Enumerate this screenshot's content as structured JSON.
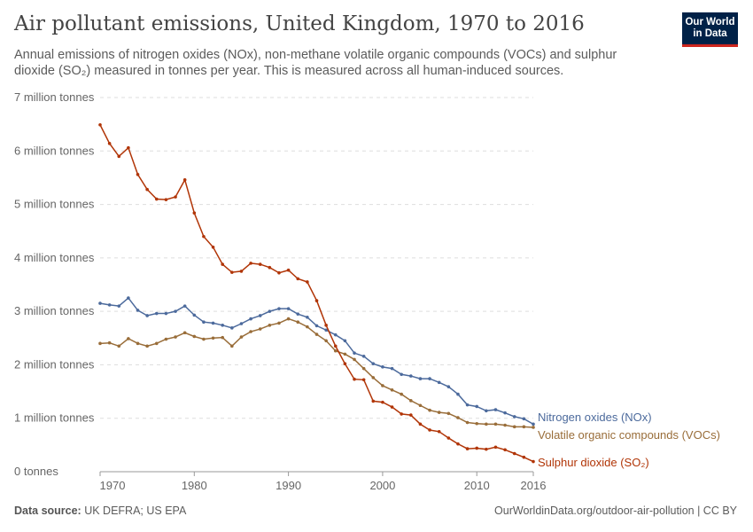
{
  "header": {
    "title": "Air pollutant emissions, United Kingdom, 1970 to 2016",
    "subtitle": "Annual emissions of nitrogen oxides (NOx), non-methane volatile organic compounds (VOCs) and sulphur dioxide (SO₂) measured in tonnes per year. This is measured across all human-induced sources.",
    "logo": "Our World in Data"
  },
  "footer": {
    "source_label": "Data source:",
    "source": "UK DEFRA; US EPA",
    "url": "OurWorldinData.org/outdoor-air-pollution | CC BY"
  },
  "chart_data": {
    "type": "line",
    "x": [
      1970,
      1971,
      1972,
      1973,
      1974,
      1975,
      1976,
      1977,
      1978,
      1979,
      1980,
      1981,
      1982,
      1983,
      1984,
      1985,
      1986,
      1987,
      1988,
      1989,
      1990,
      1991,
      1992,
      1993,
      1994,
      1995,
      1996,
      1997,
      1998,
      1999,
      2000,
      2001,
      2002,
      2003,
      2004,
      2005,
      2006,
      2007,
      2008,
      2009,
      2010,
      2011,
      2012,
      2013,
      2014,
      2015,
      2016
    ],
    "xticks": [
      1970,
      1980,
      1990,
      2000,
      2010,
      2016
    ],
    "ylim": [
      0,
      7000000
    ],
    "yticks": [
      {
        "v": 0,
        "label": "0 tonnes"
      },
      {
        "v": 1000000,
        "label": "1 million tonnes"
      },
      {
        "v": 2000000,
        "label": "2 million tonnes"
      },
      {
        "v": 3000000,
        "label": "3 million tonnes"
      },
      {
        "v": 4000000,
        "label": "4 million tonnes"
      },
      {
        "v": 5000000,
        "label": "5 million tonnes"
      },
      {
        "v": 6000000,
        "label": "6 million tonnes"
      },
      {
        "v": 7000000,
        "label": "7 million tonnes"
      }
    ],
    "grid": true,
    "legend": "right-end labels",
    "series": [
      {
        "name": "Nitrogen oxides (NOx)",
        "color": "#4c6a9c",
        "values": [
          3150000,
          3120000,
          3100000,
          3250000,
          3020000,
          2920000,
          2960000,
          2960000,
          3000000,
          3100000,
          2930000,
          2800000,
          2780000,
          2740000,
          2690000,
          2770000,
          2860000,
          2920000,
          3000000,
          3050000,
          3050000,
          2950000,
          2890000,
          2730000,
          2650000,
          2560000,
          2450000,
          2220000,
          2160000,
          2020000,
          1960000,
          1930000,
          1820000,
          1790000,
          1740000,
          1740000,
          1670000,
          1590000,
          1450000,
          1250000,
          1220000,
          1140000,
          1160000,
          1100000,
          1030000,
          990000,
          890000
        ]
      },
      {
        "name": "Volatile organic compounds (VOCs)",
        "color": "#996d39",
        "values": [
          2400000,
          2410000,
          2350000,
          2490000,
          2400000,
          2350000,
          2400000,
          2480000,
          2520000,
          2600000,
          2530000,
          2480000,
          2500000,
          2510000,
          2350000,
          2520000,
          2620000,
          2670000,
          2740000,
          2780000,
          2860000,
          2800000,
          2710000,
          2570000,
          2450000,
          2260000,
          2200000,
          2100000,
          1930000,
          1760000,
          1610000,
          1530000,
          1450000,
          1330000,
          1240000,
          1150000,
          1110000,
          1090000,
          1010000,
          920000,
          900000,
          890000,
          890000,
          870000,
          840000,
          840000,
          830000
        ]
      },
      {
        "name": "Sulphur dioxide (SO₂)",
        "color": "#b13507",
        "values": [
          6490000,
          6140000,
          5900000,
          6060000,
          5560000,
          5280000,
          5100000,
          5090000,
          5140000,
          5460000,
          4840000,
          4400000,
          4200000,
          3880000,
          3730000,
          3750000,
          3900000,
          3880000,
          3820000,
          3720000,
          3770000,
          3610000,
          3550000,
          3200000,
          2740000,
          2350000,
          2020000,
          1730000,
          1720000,
          1320000,
          1300000,
          1210000,
          1080000,
          1060000,
          890000,
          780000,
          750000,
          630000,
          520000,
          430000,
          440000,
          420000,
          460000,
          410000,
          340000,
          270000,
          190000
        ]
      }
    ]
  }
}
